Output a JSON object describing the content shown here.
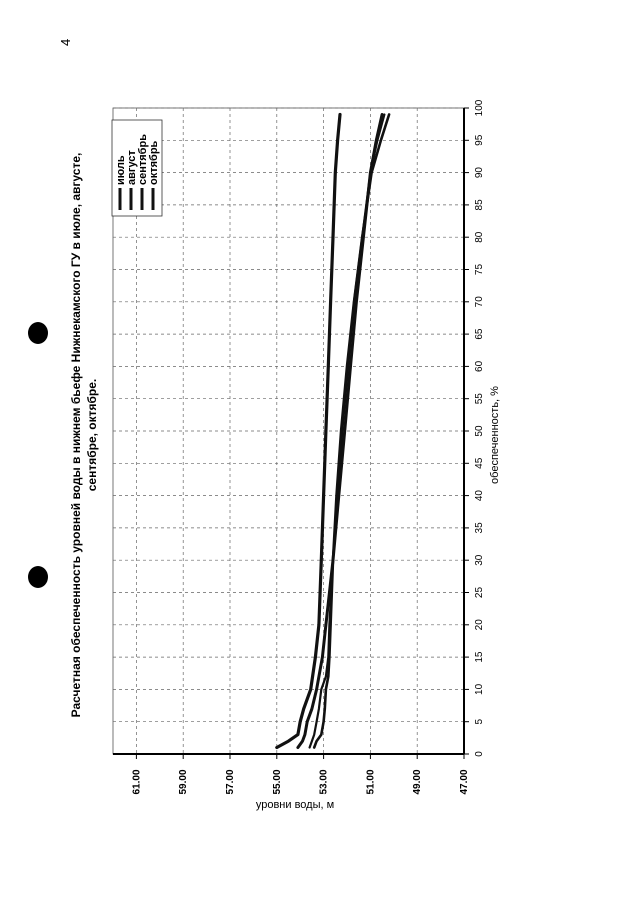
{
  "page_number": "4",
  "chart_data": {
    "type": "line",
    "title": "Расчетная обеспеченность уровней воды в нижнем бьефе Нижнекамского ГУ в июле, августе, сентябре, октябре.",
    "title_lines": [
      "Расчетная обеспеченность уровней воды в нижнем бьефе Нижнекамского ГУ в июле, августе,",
      "сентябре, октябре."
    ],
    "xlabel": "обеспеченность, %",
    "ylabel": "уровни воды, м",
    "xlim": [
      0,
      100
    ],
    "ylim": [
      47,
      62
    ],
    "x_ticks": [
      0,
      5,
      10,
      15,
      20,
      25,
      30,
      35,
      40,
      45,
      50,
      55,
      60,
      65,
      70,
      75,
      80,
      85,
      90,
      95,
      100
    ],
    "x_tick_labels": [
      "0",
      "5",
      "10",
      "15",
      "20",
      "25",
      "30",
      "35",
      "40",
      "45",
      "50",
      "55",
      "60",
      "65",
      "70",
      "75",
      "80",
      "85",
      "90",
      "95",
      "100"
    ],
    "y_ticks": [
      47,
      49,
      51,
      53,
      55,
      57,
      59,
      61
    ],
    "y_tick_labels": [
      "47.00",
      "49.00",
      "51.00",
      "53.00",
      "55.00",
      "57.00",
      "59.00",
      "61.00"
    ],
    "grid": true,
    "legend_position": "top-right",
    "orientation": "rotated-90-ccw",
    "series": [
      {
        "name": "июль",
        "x": [
          1,
          2,
          3,
          5,
          7,
          10,
          15,
          20,
          30,
          40,
          50,
          60,
          70,
          80,
          90,
          95,
          99
        ],
        "y": [
          55.0,
          54.5,
          54.1,
          54.0,
          53.85,
          53.55,
          53.35,
          53.2,
          53.1,
          53.0,
          52.9,
          52.8,
          52.7,
          52.6,
          52.5,
          52.4,
          52.3
        ]
      },
      {
        "name": "август",
        "x": [
          1,
          2,
          3,
          5,
          7,
          10,
          15,
          20,
          30,
          40,
          50,
          60,
          70,
          80,
          90,
          95,
          99
        ],
        "y": [
          54.1,
          53.9,
          53.8,
          53.7,
          53.5,
          53.3,
          53.05,
          52.9,
          52.6,
          52.35,
          52.1,
          51.85,
          51.6,
          51.3,
          51.0,
          50.75,
          50.5
        ]
      },
      {
        "name": "сентябрь",
        "x": [
          1,
          2,
          3,
          5,
          7,
          10,
          12,
          15,
          20,
          30,
          40,
          50,
          60,
          70,
          80,
          90,
          95,
          99
        ],
        "y": [
          53.6,
          53.5,
          53.4,
          53.3,
          53.2,
          53.1,
          52.9,
          52.8,
          52.75,
          52.6,
          52.4,
          52.2,
          51.95,
          51.7,
          51.35,
          51.0,
          50.7,
          50.4
        ]
      },
      {
        "name": "октябрь",
        "x": [
          1,
          2,
          3,
          5,
          7,
          10,
          12,
          15,
          20,
          30,
          40,
          50,
          60,
          70,
          80,
          90,
          95,
          99
        ],
        "y": [
          53.4,
          53.3,
          53.1,
          53.0,
          52.95,
          52.9,
          52.8,
          52.75,
          52.7,
          52.6,
          52.45,
          52.25,
          52.0,
          51.7,
          51.35,
          50.95,
          50.55,
          50.2
        ]
      }
    ]
  }
}
